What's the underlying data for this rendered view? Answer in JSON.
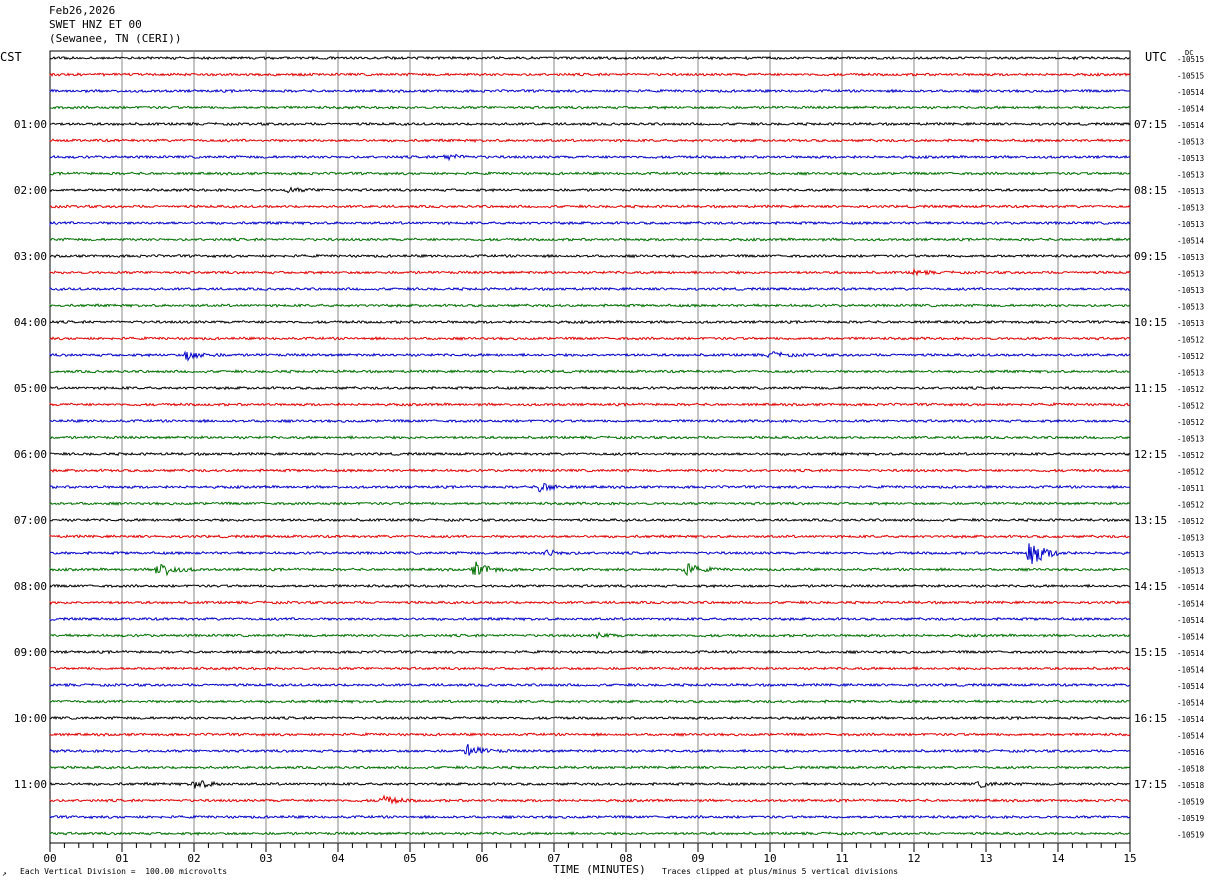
{
  "header": {
    "date": "Feb26,2026",
    "station": "SWET HNZ ET 00",
    "location": "(Sewanee, TN (CERI))"
  },
  "left_zone": "CST",
  "right_zone": "UTC",
  "dc_label": "DC",
  "footer": {
    "scale_note": "Each Vertical Division =  100.00 microvolts",
    "xlabel": "TIME (MINUTES)",
    "clip_note": "Traces clipped at plus/minus 5 vertical divisions",
    "corner_mark": "↗"
  },
  "chart_data": {
    "type": "helicorder",
    "title": "",
    "xlabel": "TIME (MINUTES)",
    "ylabel": "",
    "xlim": [
      0,
      15
    ],
    "x_ticks": [
      "00",
      "01",
      "02",
      "03",
      "04",
      "05",
      "06",
      "07",
      "08",
      "09",
      "10",
      "11",
      "12",
      "13",
      "14",
      "15"
    ],
    "grid": true,
    "minutes_per_line": 15,
    "trace_colors": [
      "#000000",
      "#e00000",
      "#0000c8",
      "#007000"
    ],
    "left_hour_labels": [
      "01:00",
      "02:00",
      "03:00",
      "04:00",
      "05:00",
      "06:00",
      "07:00",
      "08:00",
      "09:00",
      "10:00",
      "11:00"
    ],
    "right_hour_labels": [
      "07:15",
      "08:15",
      "09:15",
      "10:15",
      "11:15",
      "12:15",
      "13:15",
      "14:15",
      "15:15",
      "16:15",
      "17:15"
    ],
    "dc_offsets": [
      "-10515",
      "-10515",
      "-10514",
      "-10514",
      "-10514",
      "-10513",
      "-10513",
      "-10513",
      "-10513",
      "-10513",
      "-10513",
      "-10514",
      "-10513",
      "-10513",
      "-10513",
      "-10513",
      "-10513",
      "-10512",
      "-10512",
      "-10513",
      "-10512",
      "-10512",
      "-10512",
      "-10513",
      "-10512",
      "-10512",
      "-10511",
      "-10512",
      "-10512",
      "-10513",
      "-10513",
      "-10513",
      "-10514",
      "-10514",
      "-10514",
      "-10514",
      "-10514",
      "-10514",
      "-10514",
      "-10514",
      "-10514",
      "-10514",
      "-10516",
      "-10518",
      "-10518",
      "-10519",
      "-10519",
      "-10519"
    ],
    "events": [
      {
        "line": 6,
        "minute": 5.5,
        "amplitude": 3
      },
      {
        "line": 8,
        "minute": 3.3,
        "amplitude": 2
      },
      {
        "line": 13,
        "minute": 12.0,
        "amplitude": 2
      },
      {
        "line": 18,
        "minute": 1.9,
        "amplitude": 5
      },
      {
        "line": 18,
        "minute": 10.0,
        "amplitude": 3
      },
      {
        "line": 26,
        "minute": 6.8,
        "amplitude": 5
      },
      {
        "line": 30,
        "minute": 13.6,
        "amplitude": 16
      },
      {
        "line": 30,
        "minute": 6.9,
        "amplitude": 3
      },
      {
        "line": 31,
        "minute": 1.5,
        "amplitude": 9
      },
      {
        "line": 31,
        "minute": 5.9,
        "amplitude": 8
      },
      {
        "line": 31,
        "minute": 8.8,
        "amplitude": 7
      },
      {
        "line": 35,
        "minute": 7.6,
        "amplitude": 2
      },
      {
        "line": 42,
        "minute": 5.8,
        "amplitude": 6
      },
      {
        "line": 44,
        "minute": 2.0,
        "amplitude": 5
      },
      {
        "line": 44,
        "minute": 12.9,
        "amplitude": 3
      },
      {
        "line": 45,
        "minute": 4.6,
        "amplitude": 5
      }
    ]
  }
}
